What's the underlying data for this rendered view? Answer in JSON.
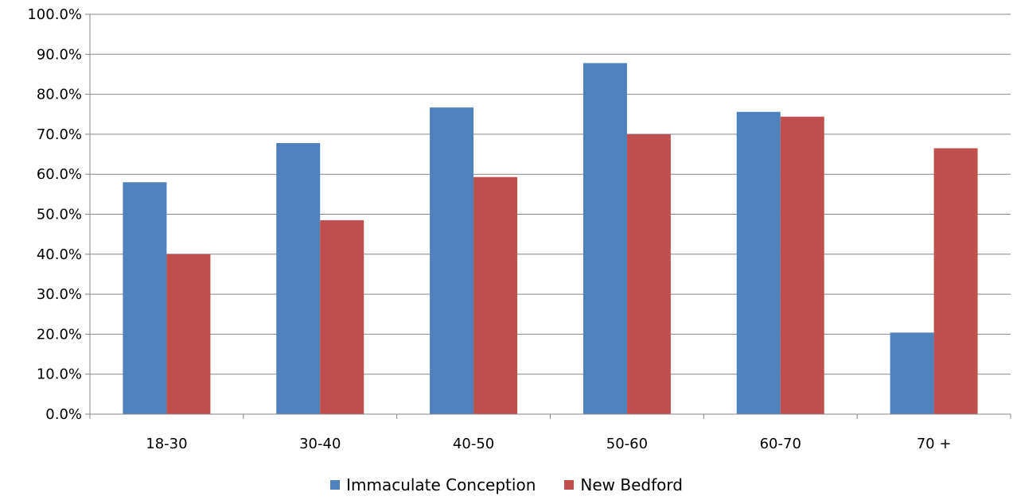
{
  "chart_data": {
    "type": "bar",
    "categories": [
      "18-30",
      "30-40",
      "40-50",
      "50-60",
      "60-70",
      "70 +"
    ],
    "series": [
      {
        "name": "Immaculate Conception",
        "color": "#4f81bd",
        "values": [
          58.0,
          67.8,
          76.7,
          87.8,
          75.6,
          20.4
        ]
      },
      {
        "name": "New Bedford",
        "color": "#c0504d",
        "values": [
          40.0,
          48.5,
          59.3,
          70.0,
          74.4,
          66.5
        ]
      }
    ],
    "ylim": [
      0,
      100
    ],
    "yticks": [
      "0.0%",
      "10.0%",
      "20.0%",
      "30.0%",
      "40.0%",
      "50.0%",
      "60.0%",
      "70.0%",
      "80.0%",
      "90.0%",
      "100.0%"
    ],
    "grid": true,
    "legend_position": "bottom",
    "gridline_color": "#868686",
    "axis_color": "#868686"
  }
}
